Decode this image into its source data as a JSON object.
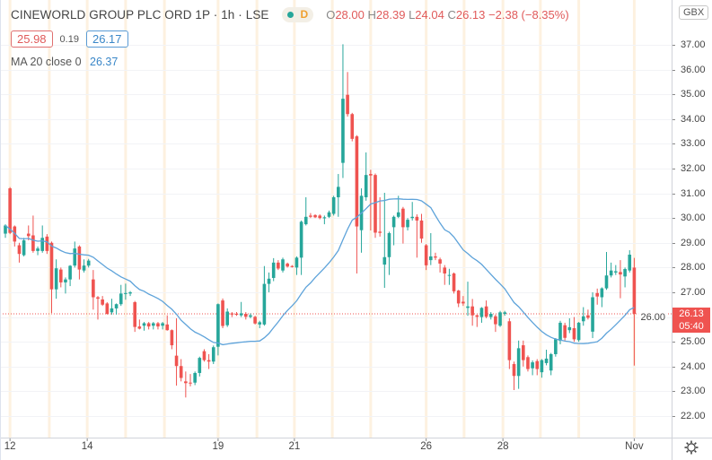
{
  "header": {
    "title": "CINEWORLD GROUP PLC ORD 1P · 1h · LSE",
    "badge_label": "D",
    "open_label": "O",
    "open": "28.00",
    "high_label": "H",
    "high": "28.39",
    "low_label": "L",
    "low": "24.04",
    "close_label": "C",
    "close": "26.13",
    "change": "−2.38 (−8.35%)",
    "bid": "25.98",
    "spread": "0.19",
    "ask": "26.17",
    "indicator_label": "MA 20 close 0",
    "indicator_value": "26.37"
  },
  "currency": "GBX",
  "last_price_label": "26.13",
  "countdown": "05:40",
  "colors": {
    "up": "#26a69a",
    "down": "#ef5350",
    "ma": "#5ea3da",
    "dayline": "#fdf1e0"
  },
  "chart_data": {
    "type": "candlestick",
    "title": "CINEWORLD GROUP PLC ORD 1P · 1h · LSE",
    "ylim": [
      21.13,
      38.81
    ],
    "y_ticks": [
      "22.00",
      "23.00",
      "24.00",
      "25.00",
      "26.00",
      "27.00",
      "28.00",
      "29.00",
      "30.00",
      "31.00",
      "32.00",
      "33.00",
      "34.00",
      "35.00",
      "36.00",
      "37.00"
    ],
    "x_ticks": [
      {
        "label": "12",
        "index": 1
      },
      {
        "label": "14",
        "index": 17.7
      },
      {
        "label": "19",
        "index": 46
      },
      {
        "label": "21",
        "index": 62.5
      },
      {
        "label": "26",
        "index": 91
      },
      {
        "label": "28",
        "index": 107.6
      },
      {
        "label": "Nov",
        "index": 136
      }
    ],
    "day_boundaries": [
      1,
      9.5,
      17.7,
      26,
      34.4,
      46,
      54.4,
      62.5,
      70.7,
      79,
      91,
      99.2,
      107.6,
      115.7,
      124,
      136
    ],
    "last_price": 26.13,
    "ma_period": 20,
    "ohlc_fields": [
      "open",
      "high",
      "low",
      "close"
    ],
    "candles": [
      [
        29.37,
        29.75,
        29.2,
        29.7
      ],
      [
        31.2,
        31.25,
        29.35,
        29.4
      ],
      [
        29.66,
        29.7,
        28.85,
        29.05
      ],
      [
        28.9,
        29.0,
        28.2,
        28.55
      ],
      [
        28.5,
        29.2,
        28.45,
        29.1
      ],
      [
        29.37,
        29.7,
        29.1,
        29.27
      ],
      [
        29.3,
        30.1,
        28.6,
        28.67
      ],
      [
        28.67,
        28.85,
        28.5,
        28.77
      ],
      [
        28.67,
        29.7,
        28.6,
        29.2
      ],
      [
        29.25,
        29.35,
        28.55,
        28.67
      ],
      [
        29.0,
        29.05,
        26.16,
        27.12
      ],
      [
        27.12,
        28.33,
        26.74,
        27.97
      ],
      [
        27.92,
        28.0,
        27.2,
        27.4
      ],
      [
        27.4,
        27.6,
        26.95,
        27.52
      ],
      [
        27.52,
        28.1,
        27.25,
        28.07
      ],
      [
        28.08,
        29.05,
        28.0,
        28.77
      ],
      [
        28.85,
        28.9,
        27.52,
        27.92
      ],
      [
        27.88,
        28.33,
        27.8,
        28.08
      ],
      [
        28.08,
        28.35,
        28.0,
        28.28
      ],
      [
        27.52,
        27.9,
        26.3,
        26.8
      ],
      [
        26.8,
        26.85,
        25.9,
        26.74
      ],
      [
        26.71,
        26.85,
        26.45,
        26.5
      ],
      [
        26.55,
        26.6,
        26.1,
        26.13
      ],
      [
        26.19,
        26.74,
        26.1,
        26.35
      ],
      [
        26.35,
        26.55,
        26.1,
        26.52
      ],
      [
        26.52,
        27.3,
        26.45,
        26.95
      ],
      [
        26.93,
        27.35,
        26.7,
        26.97
      ],
      [
        26.95,
        27.05,
        26.85,
        27.0
      ],
      [
        26.6,
        26.65,
        25.4,
        25.6
      ],
      [
        25.62,
        25.9,
        25.5,
        25.53
      ],
      [
        25.65,
        25.8,
        25.45,
        25.75
      ],
      [
        25.75,
        25.8,
        25.5,
        25.62
      ],
      [
        25.65,
        25.8,
        25.5,
        25.75
      ],
      [
        25.75,
        25.8,
        25.5,
        25.62
      ],
      [
        25.65,
        25.8,
        25.5,
        25.75
      ],
      [
        25.7,
        26.07,
        25.45,
        25.47
      ],
      [
        25.47,
        25.5,
        24.7,
        24.86
      ],
      [
        24.44,
        25.95,
        23.23,
        24.02
      ],
      [
        24.02,
        24.3,
        23.4,
        23.54
      ],
      [
        23.4,
        23.8,
        22.75,
        23.33
      ],
      [
        23.35,
        23.7,
        23.2,
        23.32
      ],
      [
        23.35,
        23.8,
        23.25,
        23.74
      ],
      [
        23.74,
        24.4,
        23.6,
        24.35
      ],
      [
        24.62,
        24.7,
        24.2,
        24.26
      ],
      [
        24.26,
        24.5,
        23.9,
        24.2
      ],
      [
        24.2,
        24.85,
        24.1,
        24.78
      ],
      [
        24.8,
        26.55,
        24.45,
        26.52
      ],
      [
        26.67,
        26.75,
        25.55,
        25.64
      ],
      [
        25.67,
        26.35,
        25.6,
        26.22
      ],
      [
        26.15,
        26.2,
        26.0,
        26.1
      ],
      [
        26.13,
        26.2,
        26.05,
        26.1
      ],
      [
        26.07,
        26.61,
        26.0,
        26.15
      ],
      [
        26.13,
        26.2,
        25.9,
        26.01
      ],
      [
        26.01,
        26.15,
        25.95,
        26.07
      ],
      [
        26.01,
        26.05,
        25.7,
        25.74
      ],
      [
        25.7,
        25.85,
        25.55,
        25.79
      ],
      [
        25.7,
        28.06,
        25.65,
        27.34
      ],
      [
        27.34,
        27.8,
        27.0,
        27.55
      ],
      [
        27.58,
        28.38,
        27.45,
        28.2
      ],
      [
        28.2,
        28.3,
        27.9,
        27.96
      ],
      [
        27.88,
        28.4,
        27.8,
        28.33
      ],
      [
        28.16,
        28.2,
        28.0,
        28.04
      ],
      [
        28.06,
        28.1,
        28.0,
        28.02
      ],
      [
        28.0,
        28.45,
        27.7,
        28.4
      ],
      [
        28.4,
        29.9,
        27.7,
        29.85
      ],
      [
        29.75,
        30.84,
        29.7,
        30.05
      ],
      [
        30.1,
        30.2,
        30.0,
        30.05
      ],
      [
        30.12,
        30.15,
        30.0,
        30.03
      ],
      [
        30.1,
        30.15,
        29.95,
        30.0
      ],
      [
        29.99,
        30.1,
        29.75,
        30.03
      ],
      [
        30.05,
        30.3,
        30.0,
        30.23
      ],
      [
        30.17,
        30.9,
        30.1,
        30.84
      ],
      [
        30.84,
        31.78,
        30.05,
        31.26
      ],
      [
        32.23,
        37.02,
        31.62,
        34.82
      ],
      [
        34.98,
        35.9,
        34.1,
        34.2
      ],
      [
        34.2,
        34.25,
        33.1,
        33.2
      ],
      [
        33.3,
        33.35,
        27.76,
        29.66
      ],
      [
        29.51,
        31.2,
        28.6,
        30.9
      ],
      [
        30.84,
        32.65,
        30.7,
        31.74
      ],
      [
        31.78,
        31.95,
        29.5,
        31.72
      ],
      [
        31.74,
        31.8,
        29.2,
        29.41
      ],
      [
        29.45,
        30.84,
        29.25,
        29.4
      ],
      [
        28.12,
        31.02,
        27.18,
        28.42
      ],
      [
        28.42,
        29.45,
        27.7,
        29.39
      ],
      [
        29.63,
        30.1,
        28.9,
        30.05
      ],
      [
        30.05,
        30.9,
        30.0,
        30.23
      ],
      [
        30.38,
        30.45,
        28.97,
        29.63
      ],
      [
        29.63,
        30.0,
        29.5,
        29.93
      ],
      [
        30.0,
        30.65,
        29.9,
        30.05
      ],
      [
        30.05,
        30.15,
        28.4,
        29.9
      ],
      [
        29.9,
        30.17,
        29.0,
        29.17
      ],
      [
        28.9,
        28.95,
        27.9,
        28.09
      ],
      [
        28.3,
        29.39,
        28.1,
        28.45
      ],
      [
        28.45,
        28.6,
        28.3,
        28.4
      ],
      [
        28.33,
        28.4,
        27.8,
        28.16
      ],
      [
        28.0,
        28.1,
        27.3,
        27.76
      ],
      [
        27.68,
        27.95,
        27.3,
        27.7
      ],
      [
        27.76,
        27.8,
        26.95,
        27.04
      ],
      [
        27.07,
        27.1,
        26.4,
        26.55
      ],
      [
        26.62,
        26.85,
        26.45,
        26.55
      ],
      [
        26.37,
        27.43,
        26.05,
        26.43
      ],
      [
        26.43,
        26.73,
        25.65,
        26.07
      ],
      [
        26.07,
        26.1,
        25.6,
        26.01
      ],
      [
        26.0,
        26.4,
        25.77,
        26.37
      ],
      [
        26.43,
        26.67,
        25.95,
        26.01
      ],
      [
        26.0,
        26.2,
        25.9,
        26.13
      ],
      [
        26.03,
        26.1,
        25.4,
        25.71
      ],
      [
        25.65,
        26.25,
        25.6,
        26.19
      ],
      [
        26.13,
        26.25,
        26.05,
        26.19
      ],
      [
        25.83,
        25.95,
        23.9,
        24.26
      ],
      [
        24.1,
        24.2,
        23.05,
        23.62
      ],
      [
        23.62,
        25.05,
        23.1,
        24.74
      ],
      [
        24.86,
        25.05,
        24.0,
        24.26
      ],
      [
        24.38,
        24.45,
        23.8,
        23.9
      ],
      [
        23.93,
        24.25,
        23.65,
        24.17
      ],
      [
        24.22,
        24.3,
        23.65,
        23.9
      ],
      [
        23.77,
        24.3,
        23.55,
        24.26
      ],
      [
        24.14,
        24.68,
        24.05,
        24.32
      ],
      [
        23.84,
        24.55,
        23.65,
        24.5
      ],
      [
        24.5,
        25.15,
        24.4,
        25.1
      ],
      [
        25.04,
        25.85,
        24.9,
        25.77
      ],
      [
        25.67,
        25.77,
        25.05,
        25.16
      ],
      [
        25.47,
        25.95,
        25.35,
        25.59
      ],
      [
        25.55,
        26.0,
        25.0,
        25.1
      ],
      [
        25.07,
        25.8,
        25.0,
        25.77
      ],
      [
        25.83,
        26.4,
        25.65,
        26.03
      ],
      [
        26.07,
        26.3,
        25.9,
        25.97
      ],
      [
        25.41,
        27.0,
        25.15,
        26.8
      ],
      [
        26.97,
        27.15,
        26.5,
        26.83
      ],
      [
        26.8,
        27.2,
        26.4,
        27.16
      ],
      [
        27.16,
        28.63,
        27.1,
        27.68
      ],
      [
        27.68,
        28.2,
        27.6,
        27.88
      ],
      [
        27.8,
        28.1,
        27.7,
        27.85
      ],
      [
        27.82,
        28.3,
        26.76,
        27.72
      ],
      [
        27.64,
        28.0,
        27.2,
        27.94
      ],
      [
        27.88,
        28.7,
        27.8,
        28.52
      ],
      [
        28.0,
        28.39,
        24.04,
        26.13
      ]
    ]
  }
}
